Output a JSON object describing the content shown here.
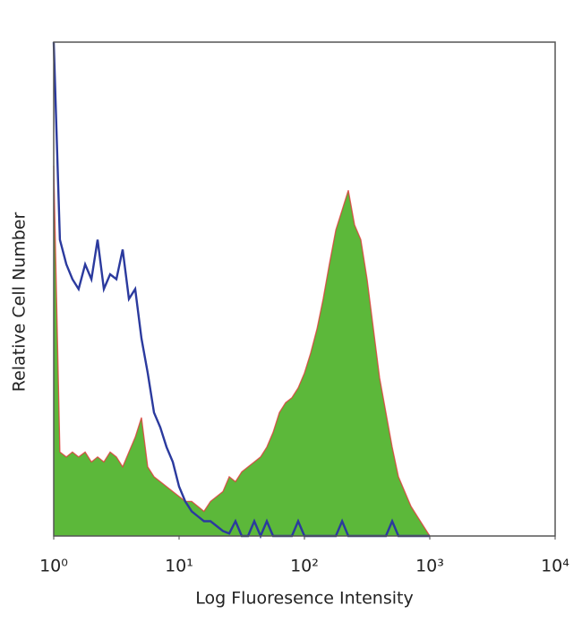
{
  "chart_data": {
    "type": "line",
    "xlabel": "Log Fluoresence Intensity",
    "ylabel": "Relative Cell Number",
    "xscale": "log",
    "xlim": [
      1,
      10000
    ],
    "xticks": [
      {
        "value": 1,
        "label": "10⁰"
      },
      {
        "value": 10,
        "label": "10¹"
      },
      {
        "value": 100,
        "label": "10²"
      },
      {
        "value": 1000,
        "label": "10³"
      },
      {
        "value": 10000,
        "label": "10⁴"
      }
    ],
    "ylim": [
      0,
      100
    ],
    "x": [
      1,
      1.12,
      1.26,
      1.41,
      1.58,
      1.78,
      2.0,
      2.24,
      2.51,
      2.82,
      3.16,
      3.55,
      3.98,
      4.47,
      5.01,
      5.62,
      6.31,
      7.08,
      7.94,
      8.91,
      10,
      11.2,
      12.6,
      14.1,
      15.8,
      17.8,
      20.0,
      22.4,
      25.1,
      28.2,
      31.6,
      35.5,
      39.8,
      44.7,
      50.1,
      56.2,
      63.1,
      70.8,
      79.4,
      89.1,
      100,
      112,
      126,
      141,
      158,
      178,
      200,
      224,
      251,
      282,
      316,
      355,
      398,
      447,
      501,
      562,
      631,
      708,
      794,
      891,
      1000
    ],
    "series": [
      {
        "color": "#5cb83a",
        "edge_color": "#e03a3a",
        "area": true,
        "values": [
          75,
          17,
          16,
          17,
          16,
          17,
          15,
          16,
          15,
          17,
          16,
          14,
          17,
          20,
          24,
          14,
          12,
          11,
          10,
          9,
          8,
          7,
          7,
          6,
          5,
          7,
          8,
          9,
          12,
          11,
          13,
          14,
          15,
          16,
          18,
          21,
          25,
          27,
          28,
          30,
          33,
          37,
          42,
          48,
          55,
          62,
          66,
          70,
          63,
          60,
          52,
          42,
          32,
          25,
          18,
          12,
          9,
          6,
          4,
          2,
          0
        ]
      },
      {
        "color": "#2b3a9e",
        "area": false,
        "values": [
          100,
          60,
          55,
          52,
          50,
          55,
          52,
          60,
          50,
          53,
          52,
          58,
          48,
          50,
          40,
          33,
          25,
          22,
          18,
          15,
          10,
          7,
          5,
          4,
          3,
          3,
          2,
          1,
          0.5,
          3,
          0,
          0,
          3,
          0,
          3,
          0,
          0,
          0,
          0,
          3,
          0,
          0,
          0,
          0,
          0,
          0,
          3,
          0,
          0,
          0,
          0,
          0,
          0,
          0,
          3,
          0,
          0,
          0,
          0,
          0,
          0
        ]
      }
    ]
  }
}
